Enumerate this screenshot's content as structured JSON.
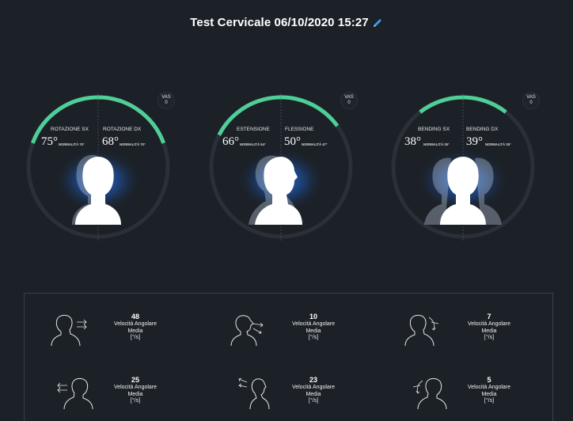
{
  "header": {
    "title": "Test Cervicale 06/10/2020 15:27",
    "edit_icon": "pencil-icon",
    "edit_icon_color": "#3d9be9"
  },
  "colors": {
    "background": "#1c2128",
    "ring_track": "#2b3038",
    "ring_accent": "#4fcf98",
    "glow": "#2a6fd6"
  },
  "gauges": [
    {
      "name": "rotazione",
      "vas_label": "VAS",
      "vas_value": "0",
      "left_label": "ROTAZIONE SX",
      "left_angle": "75°",
      "left_norm": "NORMALITÀ 70°",
      "right_label": "ROTAZIONE DX",
      "right_angle": "68°",
      "right_norm": "NORMALITÀ 70°"
    },
    {
      "name": "flesso-estensione",
      "vas_label": "VAS",
      "vas_value": "0",
      "left_label": "ESTENSIONE",
      "left_angle": "66°",
      "left_norm": "NORMALITÀ 54°",
      "right_label": "FLESSIONE",
      "right_angle": "50°",
      "right_norm": "NORMALITÀ 47°"
    },
    {
      "name": "bending",
      "vas_label": "VAS",
      "vas_value": "0",
      "left_label": "BENDING SX",
      "left_angle": "38°",
      "left_norm": "NORMALITÀ 35°",
      "right_label": "BENDING DX",
      "right_angle": "39°",
      "right_norm": "NORMALITÀ 35°"
    }
  ],
  "metrics": [
    {
      "value": "48",
      "line1": "Velocità Angolare",
      "line2": "Media",
      "line3": "[°/s]",
      "icon": "rotation-right-head-icon"
    },
    {
      "value": "10",
      "line1": "Velocità Angolare",
      "line2": "Media",
      "line3": "[°/s]",
      "icon": "flexion-head-icon"
    },
    {
      "value": "7",
      "line1": "Velocità Angolare",
      "line2": "Media",
      "line3": "[°/s]",
      "icon": "bending-right-head-icon"
    },
    {
      "value": "25",
      "line1": "Velocità Angolare",
      "line2": "Media",
      "line3": "[°/s]",
      "icon": "rotation-left-head-icon"
    },
    {
      "value": "23",
      "line1": "Velocità Angolare",
      "line2": "Media",
      "line3": "[°/s]",
      "icon": "extension-head-icon"
    },
    {
      "value": "5",
      "line1": "Velocità Angolare",
      "line2": "Media",
      "line3": "[°/s]",
      "icon": "bending-left-head-icon"
    }
  ]
}
